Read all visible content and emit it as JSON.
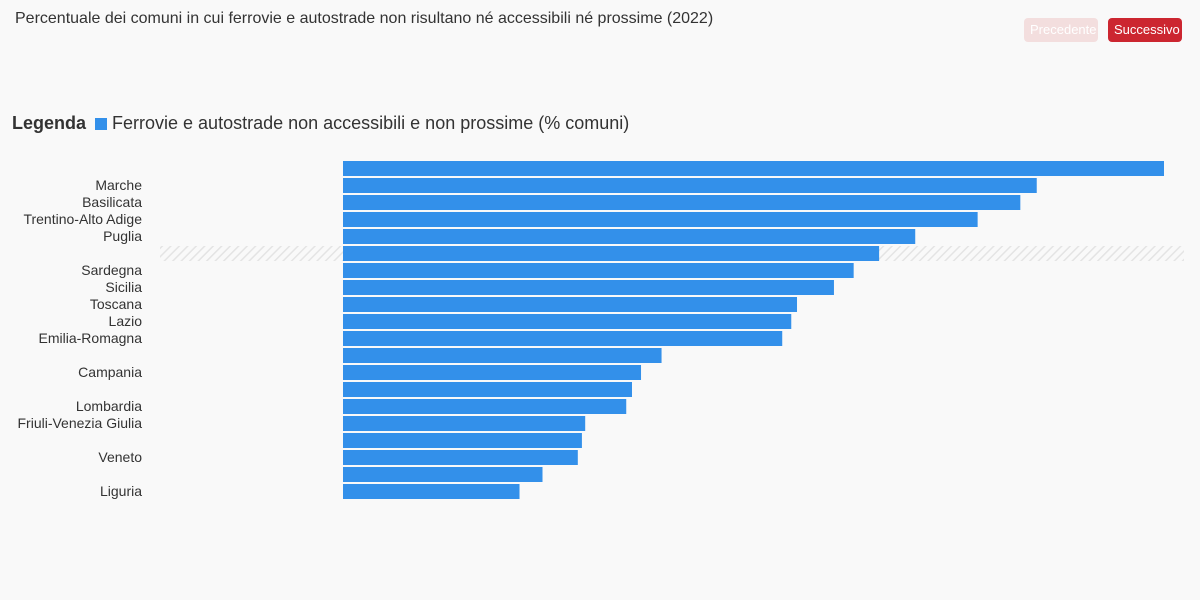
{
  "header": {
    "title": "Percentuale dei comuni in cui ferrovie e autostrade non risultano né accessibili né prossime (2022)",
    "prev_label": "Precedente",
    "next_label": "Successivo"
  },
  "legend": {
    "title": "Legenda",
    "entry": "Ferrovie e autostrade non accessibili e non prossime (% comuni)"
  },
  "colors": {
    "bar": "#3390ea",
    "accent": "#cc2630",
    "highlight_stripe": "#e6e6e6"
  },
  "chart_data": {
    "type": "bar",
    "orientation": "horizontal",
    "highlight_index": 5,
    "xlim": [
      0,
      100
    ],
    "series": [
      {
        "name": "Ferrovie e autostrade non accessibili e non prossime (% comuni)",
        "values": [
          100,
          84.5,
          82.5,
          77.3,
          69.7,
          65.3,
          62.2,
          59.8,
          55.3,
          54.6,
          53.5,
          38.8,
          36.3,
          35.2,
          34.5,
          29.5,
          29.1,
          28.6,
          24.3,
          21.5
        ]
      }
    ],
    "categories": [
      "",
      "Marche",
      "Basilicata",
      "Trentino-Alto Adige",
      "Puglia",
      "",
      "Sardegna",
      "Sicilia",
      "Toscana",
      "Lazio",
      "Emilia-Romagna",
      "",
      "Campania",
      "",
      "Lombardia",
      "Friuli-Venezia Giulia",
      "",
      "Veneto",
      "",
      "Liguria"
    ]
  }
}
